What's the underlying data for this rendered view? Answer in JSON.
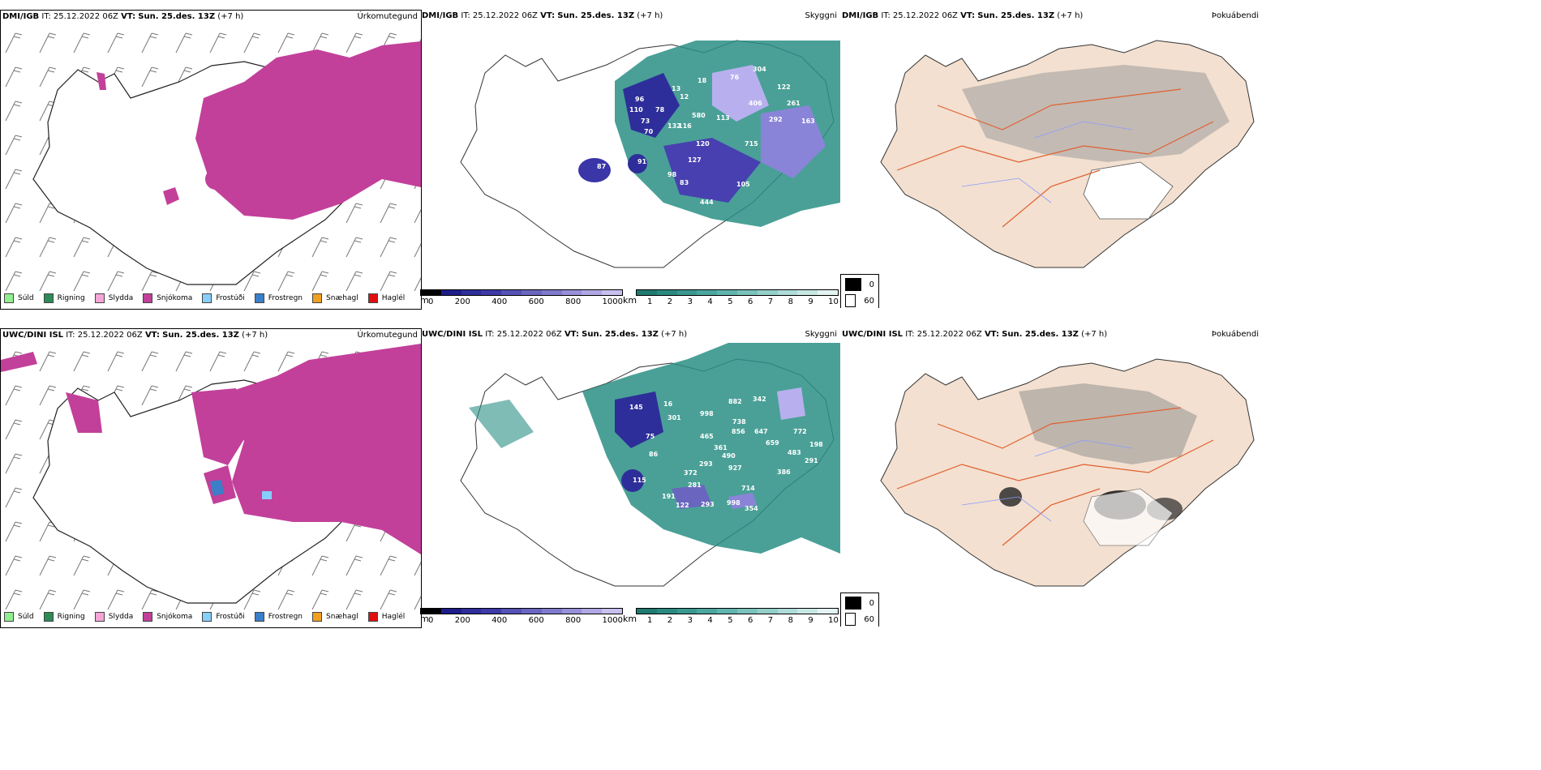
{
  "header": {
    "it_label": "IT:",
    "it_value": "25.12.2022 06Z",
    "vt_label": "VT:",
    "vt_value": "Sun. 25.des. 13Z",
    "lead": "(+7 h)"
  },
  "models": {
    "top": "DMI/IGB",
    "bottom": "UWC/DINI ISL"
  },
  "panel_titles": {
    "precip": "Úrkomutegund",
    "cloud": "Skyggni",
    "fog": "Þokuábendi"
  },
  "precip_legend": [
    {
      "label": "Súld",
      "color": "#90ee90"
    },
    {
      "label": "Rigning",
      "color": "#2e8b57"
    },
    {
      "label": "Slydda",
      "color": "#f4a6d7"
    },
    {
      "label": "Snjókoma",
      "color": "#c2409a"
    },
    {
      "label": "Frostúði",
      "color": "#87cefa"
    },
    {
      "label": "Frostregn",
      "color": "#3a7fc8"
    },
    {
      "label": "Snæhagl",
      "color": "#f0a020"
    },
    {
      "label": "Haglél",
      "color": "#e01010"
    }
  ],
  "height_bar": {
    "unit": "m",
    "ticks": [
      "0",
      "200",
      "400",
      "600",
      "800",
      "1000"
    ]
  },
  "vis_bar": {
    "unit": "km",
    "ticks": [
      "1",
      "2",
      "3",
      "4",
      "5",
      "6",
      "7",
      "8",
      "9",
      "10"
    ]
  },
  "fog_legend": [
    "0",
    "60"
  ],
  "cloud_labels_top": [
    "96",
    "13",
    "18",
    "76",
    "304",
    "122",
    "406",
    "261",
    "163",
    "12",
    "110",
    "78",
    "580",
    "113",
    "292",
    "73",
    "70",
    "132",
    "116",
    "120",
    "715",
    "87",
    "91",
    "127",
    "98",
    "83",
    "105",
    "444"
  ],
  "cloud_labels_bottom": [
    "145",
    "16",
    "301",
    "998",
    "882",
    "342",
    "738",
    "856",
    "647",
    "659",
    "772",
    "198",
    "465",
    "361",
    "490",
    "927",
    "293",
    "483",
    "291",
    "75",
    "86",
    "372",
    "281",
    "714",
    "386",
    "115",
    "191",
    "122",
    "293",
    "998",
    "354"
  ]
}
